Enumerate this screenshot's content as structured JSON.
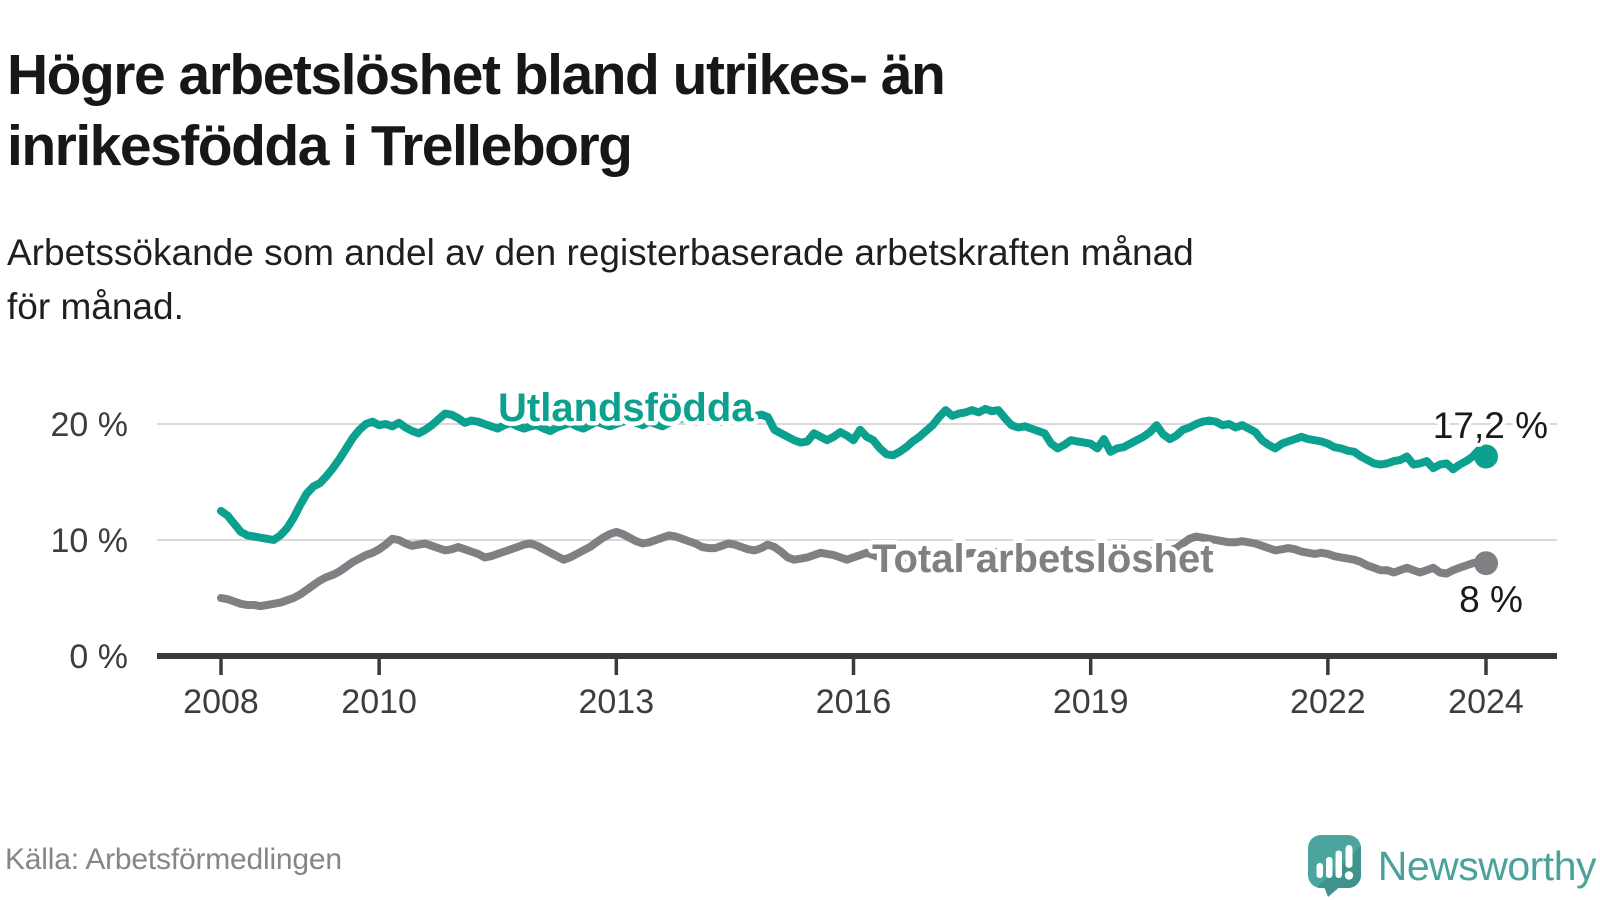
{
  "title": "Högre arbetslöshet bland utrikes- än inrikesfödda i Trelleborg",
  "title_lines": [
    "Högre arbetslöshet bland utrikes- än",
    "inrikesfödda i Trelleborg"
  ],
  "subtitle": "Arbetssökande som andel av den registerbaserade arbetskraften månad för månad.",
  "subtitle_lines": [
    "Arbetssökande som andel av den registerbaserade arbetskraften månad",
    "för månad."
  ],
  "source": "Källa: Arbetsförmedlingen",
  "brand": {
    "name": "Newsworthy",
    "icon": "speech-bubble-bar-chart-icon",
    "color": "#4AA29B"
  },
  "colors": {
    "series_foreign": "#0CA08E",
    "series_total": "#7F7F84",
    "grid": "#D9D9D9",
    "axis": "#3A3A3A",
    "tick_text": "#3D3D3D",
    "value_label": "#1A1A1A",
    "source_text": "#85858A",
    "title_text": "#171717",
    "background": "#FFFFFF"
  },
  "chart_data": {
    "type": "line",
    "title": "Högre arbetslöshet bland utrikes- än inrikesfödda i Trelleborg",
    "xlabel": "",
    "ylabel": "",
    "x_unit": "month",
    "x_range": [
      "2008-01",
      "2024-01"
    ],
    "ylim": [
      0,
      22.5
    ],
    "grid": "horizontal",
    "legend_position": "inline-labels",
    "x_tick_years": [
      2008,
      2010,
      2013,
      2016,
      2019,
      2022,
      2024
    ],
    "x_tick_labels": [
      "2008",
      "2010",
      "2013",
      "2016",
      "2019",
      "2022",
      "2024"
    ],
    "y_tick_values": [
      0,
      10,
      20
    ],
    "y_tick_labels": [
      "0 %",
      "10 %",
      "20 %"
    ],
    "y_gridline_values": [
      10,
      20
    ],
    "series": [
      {
        "name": "Utlandsfödda",
        "color": "#0CA08E",
        "end_label": "17,2 %",
        "end_value": 17.2,
        "values": [
          12.5,
          12.1,
          11.4,
          10.7,
          10.4,
          10.3,
          10.2,
          10.1,
          10.0,
          10.4,
          11.0,
          11.9,
          13.0,
          14.0,
          14.6,
          14.9,
          15.5,
          16.2,
          17.0,
          17.9,
          18.8,
          19.5,
          20.0,
          20.2,
          19.9,
          20.0,
          19.8,
          20.1,
          19.7,
          19.4,
          19.2,
          19.5,
          19.9,
          20.4,
          20.9,
          20.8,
          20.5,
          20.1,
          20.3,
          20.2,
          20.0,
          19.8,
          19.6,
          19.9,
          20.1,
          19.8,
          19.6,
          19.8,
          19.9,
          19.6,
          19.4,
          19.7,
          19.9,
          20.1,
          19.8,
          19.6,
          19.9,
          20.2,
          20.0,
          19.8,
          20.0,
          20.2,
          20.4,
          20.1,
          19.9,
          20.2,
          20.0,
          19.8,
          20.1,
          20.3,
          20.5,
          20.4,
          20.2,
          20.5,
          20.7,
          20.4,
          20.2,
          20.4,
          20.6,
          20.8,
          20.6,
          20.7,
          20.8,
          20.6,
          19.5,
          19.2,
          18.9,
          18.6,
          18.4,
          18.5,
          19.2,
          18.9,
          18.6,
          18.9,
          19.3,
          19.0,
          18.6,
          19.5,
          18.9,
          18.6,
          17.9,
          17.4,
          17.3,
          17.6,
          18.0,
          18.5,
          18.9,
          19.4,
          19.9,
          20.6,
          21.2,
          20.7,
          20.9,
          21.0,
          21.2,
          21.0,
          21.3,
          21.1,
          21.2,
          20.5,
          19.9,
          19.7,
          19.8,
          19.6,
          19.4,
          19.2,
          18.3,
          17.9,
          18.2,
          18.6,
          18.5,
          18.4,
          18.3,
          17.9,
          18.7,
          17.6,
          17.9,
          18.0,
          18.3,
          18.6,
          18.9,
          19.3,
          19.9,
          19.1,
          18.7,
          19.0,
          19.5,
          19.7,
          20.0,
          20.2,
          20.3,
          20.2,
          19.9,
          20.0,
          19.7,
          19.9,
          19.6,
          19.3,
          18.6,
          18.2,
          17.9,
          18.3,
          18.5,
          18.7,
          18.9,
          18.7,
          18.6,
          18.5,
          18.3,
          18.0,
          17.9,
          17.7,
          17.6,
          17.2,
          16.9,
          16.6,
          16.5,
          16.6,
          16.8,
          16.9,
          17.2,
          16.5,
          16.6,
          16.8,
          16.2,
          16.5,
          16.6,
          16.1,
          16.5,
          16.8,
          17.2,
          17.8,
          17.2
        ]
      },
      {
        "name": "Total arbetslöshet",
        "color": "#7F7F84",
        "end_label": "8 %",
        "end_value": 8.0,
        "values": [
          5.0,
          4.9,
          4.7,
          4.5,
          4.4,
          4.4,
          4.3,
          4.4,
          4.5,
          4.6,
          4.8,
          5.0,
          5.3,
          5.7,
          6.1,
          6.5,
          6.8,
          7.0,
          7.3,
          7.7,
          8.1,
          8.4,
          8.7,
          8.9,
          9.2,
          9.6,
          10.1,
          10.0,
          9.7,
          9.5,
          9.6,
          9.7,
          9.5,
          9.3,
          9.1,
          9.2,
          9.4,
          9.2,
          9.0,
          8.8,
          8.5,
          8.6,
          8.8,
          9.0,
          9.2,
          9.4,
          9.6,
          9.7,
          9.5,
          9.2,
          8.9,
          8.6,
          8.3,
          8.5,
          8.8,
          9.1,
          9.4,
          9.8,
          10.2,
          10.5,
          10.7,
          10.5,
          10.2,
          9.9,
          9.7,
          9.8,
          10.0,
          10.2,
          10.4,
          10.3,
          10.1,
          9.9,
          9.7,
          9.4,
          9.3,
          9.3,
          9.5,
          9.7,
          9.6,
          9.4,
          9.2,
          9.1,
          9.3,
          9.6,
          9.4,
          9.0,
          8.5,
          8.3,
          8.4,
          8.5,
          8.7,
          8.9,
          8.8,
          8.7,
          8.5,
          8.3,
          8.5,
          8.7,
          8.9,
          8.7,
          8.5,
          8.3,
          8.1,
          8.3,
          8.5,
          8.7,
          8.8,
          8.9,
          8.8,
          8.9,
          9.0,
          8.8,
          8.7,
          8.8,
          8.9,
          8.8,
          9.0,
          8.9,
          9.0,
          8.8,
          8.6,
          8.5,
          8.6,
          8.4,
          8.3,
          8.2,
          8.0,
          8.1,
          8.3,
          8.4,
          8.3,
          8.2,
          8.3,
          8.2,
          8.4,
          8.3,
          8.5,
          8.6,
          8.7,
          8.8,
          8.9,
          9.0,
          9.1,
          9.0,
          9.1,
          9.3,
          9.7,
          10.1,
          10.3,
          10.2,
          10.1,
          10.0,
          9.9,
          9.8,
          9.8,
          9.9,
          9.8,
          9.7,
          9.5,
          9.3,
          9.1,
          9.2,
          9.3,
          9.2,
          9.0,
          8.9,
          8.8,
          8.9,
          8.8,
          8.6,
          8.5,
          8.4,
          8.3,
          8.1,
          7.8,
          7.6,
          7.4,
          7.4,
          7.2,
          7.4,
          7.6,
          7.4,
          7.2,
          7.4,
          7.6,
          7.2,
          7.1,
          7.4,
          7.6,
          7.8,
          8.0,
          8.1,
          8.0
        ]
      }
    ]
  }
}
